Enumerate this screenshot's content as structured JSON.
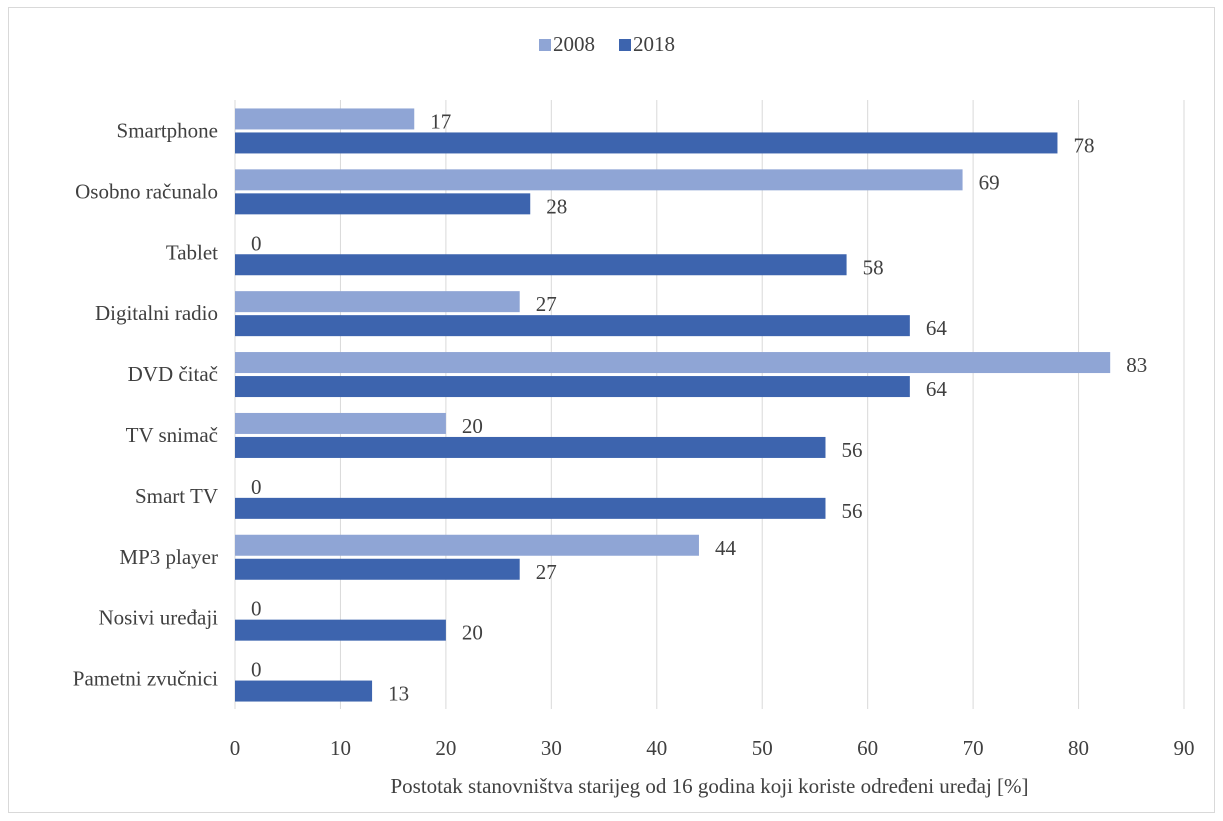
{
  "chart_data": {
    "type": "bar",
    "orientation": "horizontal",
    "title": "",
    "categories": [
      "Smartphone",
      "Osobno računalo",
      "Tablet",
      "Digitalni radio",
      "DVD čitač",
      "TV snimač",
      "Smart TV",
      "MP3 player",
      "Nosivi uređaji",
      "Pametni zvučnici"
    ],
    "series": [
      {
        "name": "2008",
        "color": "#8fa5d5",
        "values": [
          17,
          69,
          0,
          27,
          83,
          20,
          0,
          44,
          0,
          0
        ]
      },
      {
        "name": "2018",
        "color": "#3d64ae",
        "values": [
          78,
          28,
          58,
          64,
          64,
          56,
          56,
          27,
          20,
          13
        ]
      }
    ],
    "xlabel": "Postotak stanovništva starijeg od 16 godina koji koriste određeni uređaj [%]",
    "ylabel": "",
    "xlim": [
      0,
      90
    ],
    "xticks": [
      0,
      10,
      20,
      30,
      40,
      50,
      60,
      70,
      80,
      90
    ],
    "grid": "vertical",
    "legend_position": "top",
    "data_labels": true
  }
}
